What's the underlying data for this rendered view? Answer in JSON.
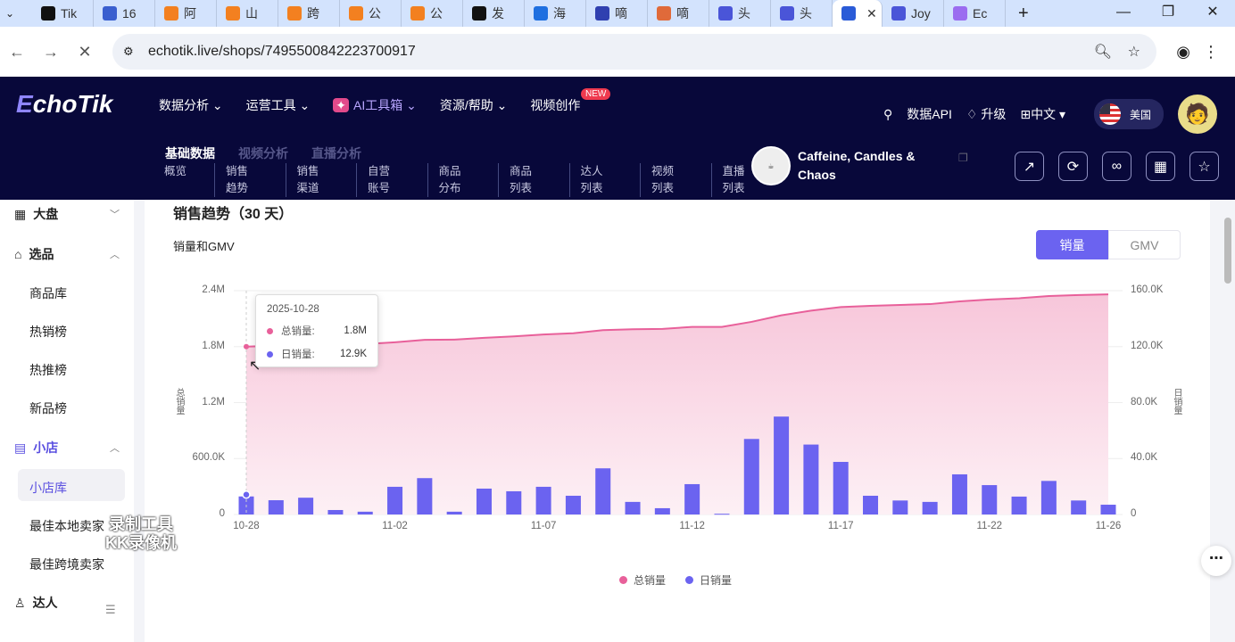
{
  "browser": {
    "tabs": [
      "Tik",
      "16",
      "阿",
      "山",
      "跨",
      "公",
      "公",
      "发",
      "海",
      "嘀",
      "嘀",
      "头",
      "头",
      "",
      "Joy",
      "Ec"
    ],
    "tab_colors": [
      "#111",
      "#3a5fcf",
      "#f38020",
      "#f38020",
      "#f38020",
      "#f38020",
      "#f38020",
      "#111",
      "#1e6fe0",
      "#3040b0",
      "#e06a3a",
      "#4a55d8",
      "#4a55d8",
      "#2a5bd7",
      "#4a55d8",
      "#9b6cf0"
    ],
    "url": "echotik.live/shops/7495500842223700917"
  },
  "header": {
    "logo": "EchoTik",
    "nav": [
      "数据分析",
      "运营工具",
      "AI工具箱",
      "资源/帮助",
      "视频创作"
    ],
    "new_badge": "NEW",
    "api": "数据API",
    "upgrade": "升级",
    "lang": "中文",
    "region": "美国",
    "section_tabs": [
      "基础数据",
      "视频分析",
      "直播分析"
    ],
    "sub_nav": [
      "概览",
      "销售趋势",
      "销售渠道",
      "自营账号",
      "商品分布",
      "商品列表",
      "达人列表",
      "视频列表",
      "直播列表"
    ],
    "shop_name": "Caffeine, Candles & Chaos",
    "shop_logo_text": "CAFFEINE CANDLES"
  },
  "sidebar": {
    "items": [
      {
        "label": "大盘",
        "icon": "grid-icon"
      },
      {
        "label": "选品",
        "icon": "bag-icon"
      },
      {
        "label": "小店",
        "icon": "store-icon"
      },
      {
        "label": "达人",
        "icon": "user-icon"
      }
    ],
    "product_sub": [
      "商品库",
      "热销榜",
      "热推榜",
      "新品榜"
    ],
    "shop_sub": [
      "小店库",
      "最佳本地卖家",
      "最佳跨境卖家"
    ]
  },
  "watermark": [
    "录制工具",
    "KK录像机"
  ],
  "main": {
    "section_title": "销售趋势（30 天）",
    "chart_title": "销量和GMV",
    "toggle": [
      "销量",
      "GMV"
    ],
    "tooltip": {
      "date": "2025-10-28",
      "rows": [
        {
          "label": "总销量:",
          "value": "1.8M"
        },
        {
          "label": "日销量:",
          "value": "12.9K"
        }
      ]
    }
  },
  "chart_data": {
    "type": "bar+line",
    "categories": [
      "10-28",
      "10-29",
      "10-30",
      "10-31",
      "11-01",
      "11-02",
      "11-03",
      "11-04",
      "11-05",
      "11-06",
      "11-07",
      "11-08",
      "11-09",
      "11-10",
      "11-11",
      "11-12",
      "11-13",
      "11-14",
      "11-15",
      "11-16",
      "11-17",
      "11-18",
      "11-19",
      "11-20",
      "11-21",
      "11-22",
      "11-23",
      "11-24",
      "11-25",
      "11-26"
    ],
    "xtick_labels": [
      "10-28",
      "11-02",
      "11-07",
      "11-12",
      "11-17",
      "11-22",
      "11-26"
    ],
    "left_axis": {
      "label": "总销量",
      "ticks": [
        "0",
        "600.0K",
        "1.2M",
        "1.8M",
        "2.4M"
      ],
      "range": [
        0,
        2400000
      ]
    },
    "right_axis": {
      "label": "日销量",
      "ticks": [
        "0",
        "40.0K",
        "80.0K",
        "120.0K",
        "160.0K"
      ],
      "range": [
        0,
        160000
      ]
    },
    "series": [
      {
        "name": "总销量",
        "type": "area-line",
        "axis": "left",
        "color": "#e8609a",
        "values": [
          1800000,
          1810000,
          1822000,
          1825000,
          1827000,
          1847000,
          1873000,
          1875000,
          1894000,
          1910000,
          1930000,
          1944000,
          1977000,
          1986000,
          1990000,
          2012000,
          2012000,
          2066000,
          2136000,
          2186000,
          2224000,
          2237000,
          2247000,
          2256000,
          2285000,
          2306000,
          2319000,
          2343000,
          2353000,
          2360000
        ]
      },
      {
        "name": "日销量",
        "type": "bar",
        "axis": "right",
        "color": "#6b63f0",
        "values": [
          12900,
          10200,
          12000,
          3200,
          2000,
          19800,
          26000,
          2000,
          18500,
          16600,
          19800,
          13400,
          33000,
          9000,
          4500,
          21700,
          500,
          54000,
          70000,
          50000,
          37600,
          13400,
          10000,
          9000,
          28700,
          21000,
          12800,
          24000,
          10000,
          7000
        ]
      }
    ],
    "legend": "bottom"
  }
}
